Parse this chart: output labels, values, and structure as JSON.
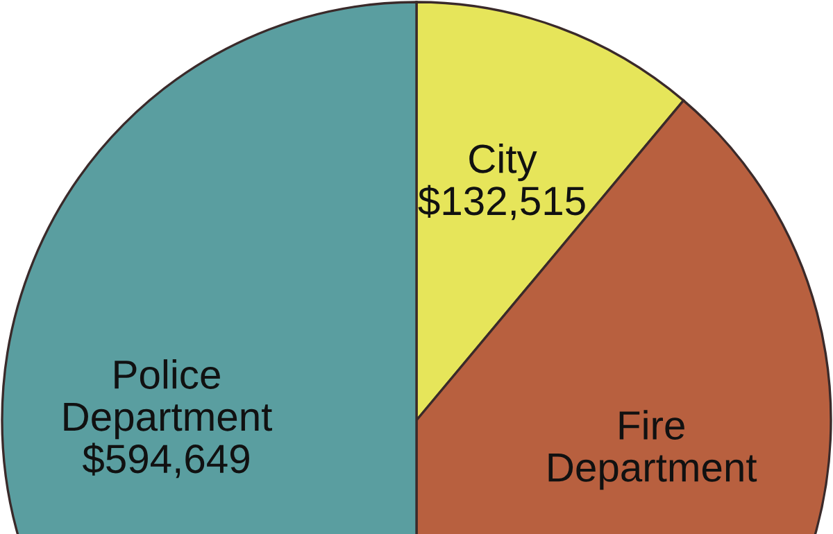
{
  "chart_data": {
    "type": "pie",
    "categories": [
      "City",
      "Fire Department",
      "Police Department"
    ],
    "values": [
      132515,
      462134,
      594649
    ],
    "value_labels": [
      "$132,515",
      null,
      "$594,649"
    ],
    "colors": [
      "#e6e55a",
      "#b8603f",
      "#5a9ea0"
    ]
  }
}
